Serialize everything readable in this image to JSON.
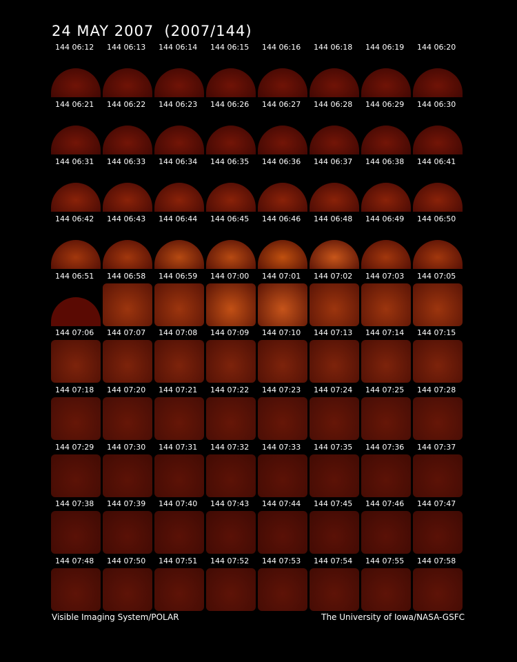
{
  "title": "24 MAY 2007  (2007/144)",
  "footer_left": "Visible Imaging System/POLAR",
  "footer_right": "The University of Iowa/NASA-GSFC",
  "rows": [
    [
      "144 06:12",
      "144 06:13",
      "144 06:14",
      "144 06:15",
      "144 06:16",
      "144 06:18",
      "144 06:19",
      "144 06:20"
    ],
    [
      "144 06:21",
      "144 06:22",
      "144 06:23",
      "144 06:26",
      "144 06:27",
      "144 06:28",
      "144 06:29",
      "144 06:30"
    ],
    [
      "144 06:31",
      "144 06:33",
      "144 06:34",
      "144 06:35",
      "144 06:36",
      "144 06:37",
      "144 06:38",
      "144 06:41"
    ],
    [
      "144 06:42",
      "144 06:43",
      "144 06:44",
      "144 06:45",
      "144 06:46",
      "144 06:48",
      "144 06:49",
      "144 06:50"
    ],
    [
      "144 06:51",
      "144 06:58",
      "144 06:59",
      "144 07:00",
      "144 07:01",
      "144 07:02",
      "144 07:03",
      "144 07:05"
    ],
    [
      "144 07:06",
      "144 07:07",
      "144 07:08",
      "144 07:09",
      "144 07:10",
      "144 07:13",
      "144 07:14",
      "144 07:15"
    ],
    [
      "144 07:18",
      "144 07:20",
      "144 07:21",
      "144 07:22",
      "144 07:23",
      "144 07:24",
      "144 07:25",
      "144 07:28"
    ],
    [
      "144 07:29",
      "144 07:30",
      "144 07:31",
      "144 07:32",
      "144 07:33",
      "144 07:35",
      "144 07:36",
      "144 07:37"
    ],
    [
      "144 07:38",
      "144 07:39",
      "144 07:40",
      "144 07:43",
      "144 07:44",
      "144 07:45",
      "144 07:46",
      "144 07:47"
    ],
    [
      "144 07:48",
      "144 07:50",
      "144 07:51",
      "144 07:52",
      "144 07:53",
      "144 07:54",
      "144 07:55",
      "144 07:58"
    ]
  ],
  "colors": {
    "background": "#000000",
    "text": "#ffffff",
    "dim_red": "#5a0c05",
    "mid_red": "#7a1a08",
    "bright_orange": "#b3420f"
  }
}
